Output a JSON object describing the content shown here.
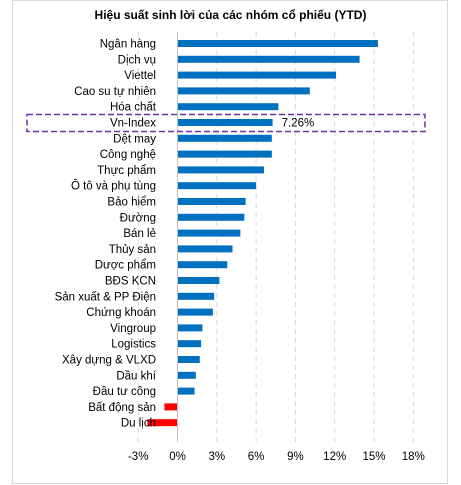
{
  "chart_data": {
    "type": "bar",
    "orientation": "horizontal",
    "title": "Hiệu suất sinh lời của các nhóm cổ phiếu (YTD)",
    "categories": [
      "Ngân hàng",
      "Dịch vụ",
      "Viettel",
      "Cao su tự nhiên",
      "Hóa chất",
      "Vn-Index",
      "Dệt may",
      "Công nghệ",
      "Thực phẩm",
      "Ô tô và phụ tùng",
      "Bảo hiểm",
      "Đường",
      "Bán lẻ",
      "Thủy sản",
      "Dược phẩm",
      "BĐS KCN",
      "Sản xuất & PP Điện",
      "Chứng khoán",
      "Vingroup",
      "Logistics",
      "Xây dựng & VLXD",
      "Dầu khí",
      "Đầu tư công",
      "Bất động sản",
      "Du lịch"
    ],
    "values": [
      15.3,
      13.9,
      12.1,
      10.1,
      7.7,
      7.26,
      7.2,
      7.2,
      6.6,
      6.0,
      5.2,
      5.1,
      4.8,
      4.2,
      3.8,
      3.2,
      2.8,
      2.7,
      1.9,
      1.8,
      1.7,
      1.4,
      1.3,
      -1.0,
      -2.3
    ],
    "highlight": {
      "category": "Vn-Index",
      "label": "7.26%",
      "box_color": "#7030a0"
    },
    "xlim": [
      -3,
      18
    ],
    "xticks": [
      -3,
      0,
      3,
      6,
      9,
      12,
      15,
      18
    ],
    "xtick_labels": [
      "-3%",
      "0%",
      "3%",
      "6%",
      "9%",
      "12%",
      "15%",
      "18%"
    ],
    "grid": "vertical dashed",
    "colors": {
      "positive": "#0070c0",
      "negative": "#ff0000",
      "grid": "#d9d9d9",
      "text": "#000000"
    }
  }
}
